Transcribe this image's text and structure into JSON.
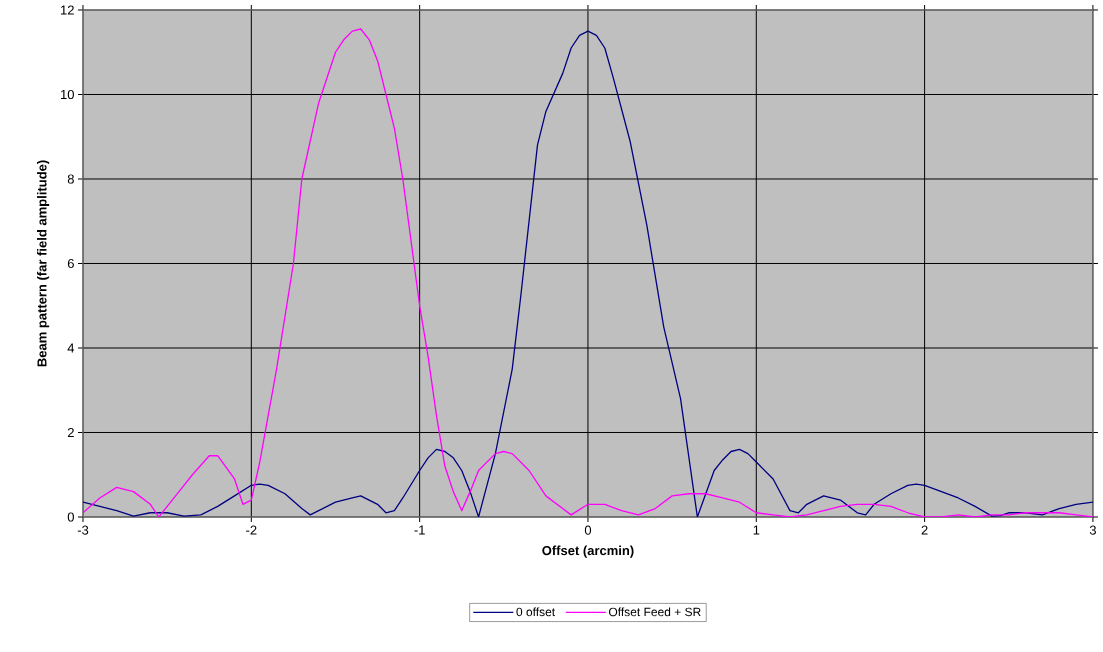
{
  "chart_data": {
    "type": "line",
    "xlabel": "Offset (arcmin)",
    "ylabel": "Beam pattern (far field amplitude)",
    "xlim": [
      -3,
      3
    ],
    "ylim": [
      0,
      12
    ],
    "xticks": [
      -3,
      -2,
      -1,
      0,
      1,
      2,
      3
    ],
    "yticks": [
      0,
      2,
      4,
      6,
      8,
      10,
      12
    ],
    "grid": true,
    "legend": "bottom",
    "marker": "none",
    "line_style": "solid",
    "series": [
      {
        "name": "0 offset",
        "color": "#000080",
        "x": [
          -3,
          -2.9,
          -2.8,
          -2.7,
          -2.6,
          -2.5,
          -2.4,
          -2.3,
          -2.2,
          -2.1,
          -2.0,
          -1.95,
          -1.9,
          -1.8,
          -1.7,
          -1.65,
          -1.6,
          -1.5,
          -1.4,
          -1.35,
          -1.3,
          -1.25,
          -1.2,
          -1.15,
          -1.1,
          -1.0,
          -0.95,
          -0.9,
          -0.85,
          -0.8,
          -0.75,
          -0.7,
          -0.65,
          -0.55,
          -0.45,
          -0.4,
          -0.3,
          -0.25,
          -0.15,
          -0.1,
          -0.05,
          0,
          0.05,
          0.1,
          0.15,
          0.25,
          0.35,
          0.45,
          0.55,
          0.65,
          0.75,
          0.8,
          0.85,
          0.9,
          0.95,
          1.0,
          1.1,
          1.2,
          1.25,
          1.3,
          1.4,
          1.5,
          1.6,
          1.65,
          1.7,
          1.8,
          1.9,
          1.95,
          2.0,
          2.1,
          2.2,
          2.3,
          2.4,
          2.45,
          2.5,
          2.6,
          2.7,
          2.8,
          2.9,
          3.0
        ],
        "values": [
          0.35,
          0.25,
          0.15,
          0.02,
          0.1,
          0.1,
          0.02,
          0.05,
          0.25,
          0.5,
          0.75,
          0.78,
          0.75,
          0.55,
          0.2,
          0.05,
          0.15,
          0.35,
          0.45,
          0.5,
          0.4,
          0.3,
          0.1,
          0.15,
          0.45,
          1.1,
          1.4,
          1.6,
          1.55,
          1.4,
          1.1,
          0.6,
          0.0,
          1.5,
          3.5,
          5.2,
          8.8,
          9.6,
          10.5,
          11.1,
          11.4,
          11.5,
          11.4,
          11.1,
          10.4,
          8.9,
          6.9,
          4.5,
          2.8,
          0.0,
          1.1,
          1.35,
          1.55,
          1.6,
          1.5,
          1.3,
          0.9,
          0.15,
          0.1,
          0.3,
          0.5,
          0.4,
          0.1,
          0.05,
          0.3,
          0.55,
          0.75,
          0.78,
          0.75,
          0.6,
          0.45,
          0.25,
          0.02,
          0.03,
          0.1,
          0.1,
          0.05,
          0.2,
          0.3,
          0.35
        ]
      },
      {
        "name": "Offset Feed + SR",
        "color": "#ff00ff",
        "x": [
          -3,
          -2.9,
          -2.8,
          -2.7,
          -2.6,
          -2.55,
          -2.45,
          -2.35,
          -2.25,
          -2.2,
          -2.1,
          -2.05,
          -2.0,
          -1.95,
          -1.85,
          -1.75,
          -1.7,
          -1.6,
          -1.5,
          -1.45,
          -1.4,
          -1.35,
          -1.3,
          -1.25,
          -1.2,
          -1.15,
          -1.1,
          -1.0,
          -0.95,
          -0.9,
          -0.85,
          -0.8,
          -0.75,
          -0.7,
          -0.65,
          -0.55,
          -0.5,
          -0.45,
          -0.35,
          -0.25,
          -0.1,
          0,
          0.1,
          0.2,
          0.3,
          0.4,
          0.5,
          0.6,
          0.7,
          0.8,
          0.9,
          1.0,
          1.1,
          1.2,
          1.3,
          1.4,
          1.5,
          1.6,
          1.7,
          1.8,
          1.9,
          2.0,
          2.1,
          2.2,
          2.3,
          2.4,
          2.5,
          2.6,
          2.7,
          2.8,
          2.9,
          3.0
        ],
        "values": [
          0.1,
          0.45,
          0.7,
          0.6,
          0.3,
          0.0,
          0.5,
          1.0,
          1.45,
          1.45,
          0.9,
          0.3,
          0.4,
          1.3,
          3.5,
          6.0,
          8.0,
          9.8,
          11.0,
          11.3,
          11.5,
          11.55,
          11.3,
          10.8,
          10.0,
          9.2,
          8.0,
          5.0,
          3.8,
          2.4,
          1.2,
          0.6,
          0.15,
          0.6,
          1.1,
          1.5,
          1.55,
          1.5,
          1.1,
          0.5,
          0.05,
          0.3,
          0.3,
          0.15,
          0.05,
          0.2,
          0.5,
          0.55,
          0.55,
          0.45,
          0.35,
          0.1,
          0.05,
          0.0,
          0.05,
          0.15,
          0.25,
          0.3,
          0.3,
          0.25,
          0.1,
          0.0,
          0.0,
          0.05,
          0.0,
          0.05,
          0.05,
          0.1,
          0.1,
          0.1,
          0.05,
          0.0
        ]
      }
    ]
  }
}
